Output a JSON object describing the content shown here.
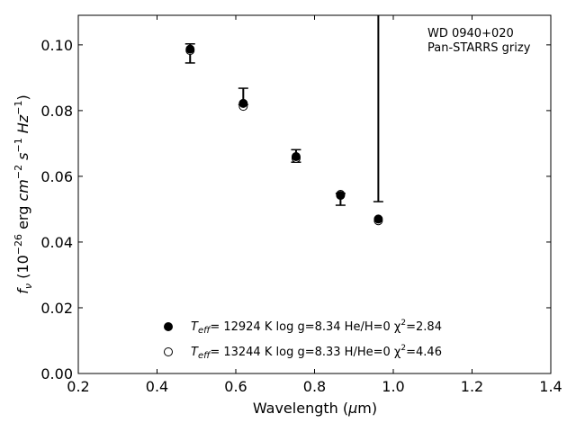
{
  "chart_data": {
    "type": "scatter",
    "annotation": [
      "WD 0940+020",
      "Pan-STARRS grizy"
    ],
    "xlabel": "Wavelength (μm)",
    "ylabel": "fν (10⁻²⁶ erg cm⁻² s⁻¹ Hz⁻¹)",
    "xlim": [
      0.2,
      1.4
    ],
    "ylim": [
      0.0,
      0.109
    ],
    "xticks": [
      0.2,
      0.4,
      0.6,
      0.8,
      1.0,
      1.2,
      1.4
    ],
    "xtick_labels": [
      "0.2",
      "0.4",
      "0.6",
      "0.8",
      "1.0",
      "1.2",
      "1.4"
    ],
    "yticks": [
      0.0,
      0.02,
      0.04,
      0.06,
      0.08,
      0.1
    ],
    "ytick_labels": [
      "0.00",
      "0.02",
      "0.04",
      "0.06",
      "0.08",
      "0.10"
    ],
    "grid": false,
    "legend_position": "bottom-center",
    "observed": {
      "x": [
        0.484,
        0.619,
        0.753,
        0.866,
        0.962
      ],
      "y": [
        0.099,
        0.082,
        0.0663,
        0.054,
        0.047
      ],
      "err_low": [
        0.0945,
        0.0818,
        0.0643,
        0.0512,
        0.0523
      ],
      "err_high": [
        0.1003,
        0.0868,
        0.0681,
        0.0548,
        0.109
      ]
    },
    "series": [
      {
        "name": "T_eff= 12924 K  log g=8.34  He/H=0  χ²=2.84",
        "marker": "filled-circle",
        "x": [
          0.484,
          0.619,
          0.753,
          0.866,
          0.962
        ],
        "y": [
          0.0987,
          0.0822,
          0.066,
          0.0542,
          0.047
        ]
      },
      {
        "name": "T_eff= 13244 K  log g=8.33  H/He=0  χ²=4.46",
        "marker": "open-circle",
        "x": [
          0.484,
          0.619,
          0.753,
          0.866,
          0.962
        ],
        "y": [
          0.0983,
          0.0813,
          0.0655,
          0.0545,
          0.0465
        ]
      }
    ]
  },
  "legend": {
    "entry1": {
      "t": "T",
      "sub": "eff",
      "rest": "= 12924 K  log g=8.34  He/H=0  χ",
      "sup": "2",
      "end": "=2.84"
    },
    "entry2": {
      "t": "T",
      "sub": "eff",
      "rest": "= 13244 K  log g=8.33  H/He=0  χ",
      "sup": "2",
      "end": "=4.46"
    }
  },
  "ylabel_parts": {
    "f": "f",
    "nu": "ν",
    "open": " (10",
    "e1": "−26",
    "erg": " erg ",
    "cm": "cm",
    "e2": "−2",
    "s": " s",
    "e3": "−1",
    "hz": " Hz",
    "e4": "−1",
    "close": ")"
  },
  "xlabel_parts": {
    "pre": "Wavelength (",
    "mu": "μ",
    "post": "m)"
  }
}
